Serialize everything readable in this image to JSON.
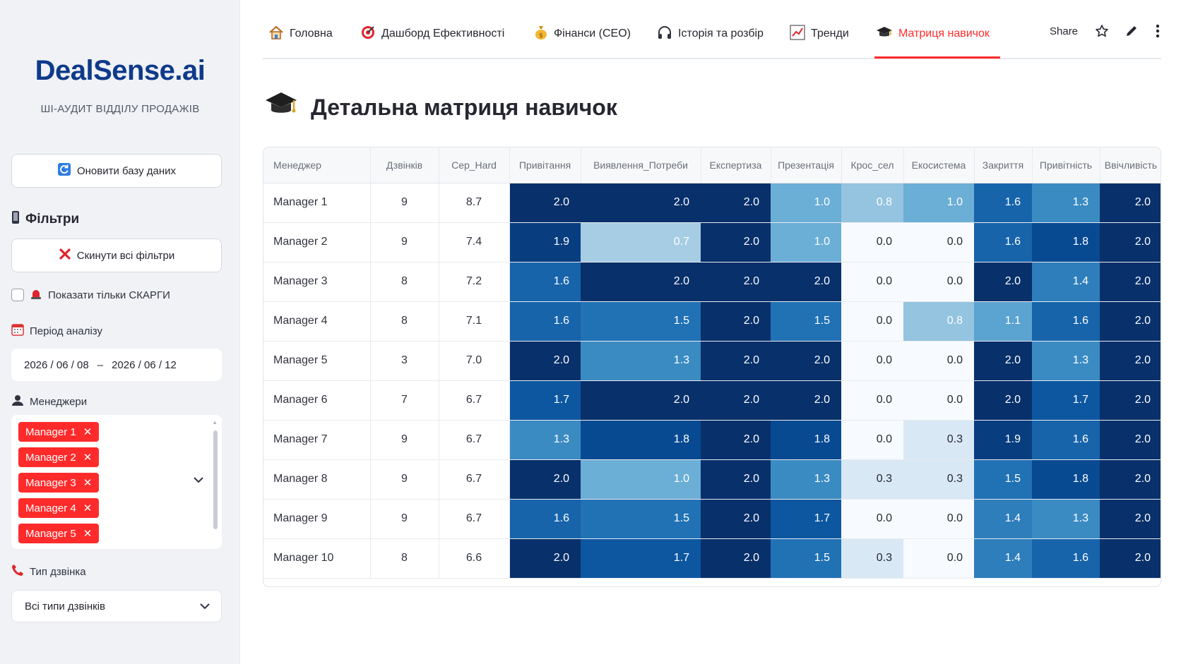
{
  "sidebar": {
    "brand": "DealSense.ai",
    "subtitle": "ШІ-АУДИТ ВІДДІЛУ ПРОДАЖІВ",
    "refresh_label": "Оновити базу даних",
    "filters_heading": "Фільтри",
    "reset_label": "Скинути всі фільтри",
    "complaints_label": "Показати тільки СКАРГИ",
    "period_label": "Період аналізу",
    "date_from": "2026 / 06 / 08",
    "date_sep": "–",
    "date_to": "2026 / 06 / 12",
    "managers_label": "Менеджери",
    "managers_selected": [
      "Manager 1",
      "Manager 2",
      "Manager 3",
      "Manager 4",
      "Manager 5"
    ],
    "call_type_label": "Тип дзвінка",
    "call_type_value": "Всі типи дзвінків"
  },
  "nav": {
    "tabs": [
      {
        "label": "Головна",
        "icon": "home-icon"
      },
      {
        "label": "Дашборд Ефективності",
        "icon": "target-icon"
      },
      {
        "label": "Фінанси (CEO)",
        "icon": "money-bag-icon"
      },
      {
        "label": "Історія та розбір",
        "icon": "headphones-icon"
      },
      {
        "label": "Тренди",
        "icon": "chart-icon"
      },
      {
        "label": "Матриця навичок",
        "icon": "graduation-cap-icon"
      }
    ],
    "active_tab": 5,
    "share_label": "Share"
  },
  "main": {
    "title": "Детальна матриця навичок"
  },
  "table": {
    "columns": [
      "Менеджер",
      "Дзвінків",
      "Сер_Hard",
      "Привітання",
      "Виявлення_Потреби",
      "Експертиза",
      "Презентація",
      "Крос_сел",
      "Екосистема",
      "Закриття",
      "Привітність",
      "Ввічливість"
    ],
    "rows": [
      [
        "Manager 1",
        "9",
        "8.7",
        "2.0",
        "2.0",
        "2.0",
        "1.0",
        "0.8",
        "1.0",
        "1.6",
        "1.3",
        "2.0"
      ],
      [
        "Manager 2",
        "9",
        "7.4",
        "1.9",
        "0.7",
        "2.0",
        "1.0",
        "0.0",
        "0.0",
        "1.6",
        "1.8",
        "2.0"
      ],
      [
        "Manager 3",
        "8",
        "7.2",
        "1.6",
        "2.0",
        "2.0",
        "2.0",
        "0.0",
        "0.0",
        "2.0",
        "1.4",
        "2.0"
      ],
      [
        "Manager 4",
        "8",
        "7.1",
        "1.6",
        "1.5",
        "2.0",
        "1.5",
        "0.0",
        "0.8",
        "1.1",
        "1.6",
        "2.0"
      ],
      [
        "Manager 5",
        "3",
        "7.0",
        "2.0",
        "1.3",
        "2.0",
        "2.0",
        "0.0",
        "0.0",
        "2.0",
        "1.3",
        "2.0"
      ],
      [
        "Manager 6",
        "7",
        "6.7",
        "1.7",
        "2.0",
        "2.0",
        "2.0",
        "0.0",
        "0.0",
        "2.0",
        "1.7",
        "2.0"
      ],
      [
        "Manager 7",
        "9",
        "6.7",
        "1.3",
        "1.8",
        "2.0",
        "1.8",
        "0.0",
        "0.3",
        "1.9",
        "1.6",
        "2.0"
      ],
      [
        "Manager 8",
        "9",
        "6.7",
        "2.0",
        "1.0",
        "2.0",
        "1.3",
        "0.3",
        "0.3",
        "1.5",
        "1.8",
        "2.0"
      ],
      [
        "Manager 9",
        "9",
        "6.7",
        "1.6",
        "1.5",
        "2.0",
        "1.7",
        "0.0",
        "0.0",
        "1.4",
        "1.3",
        "2.0"
      ],
      [
        "Manager 10",
        "8",
        "6.6",
        "2.0",
        "1.7",
        "2.0",
        "1.5",
        "0.3",
        "0.0",
        "1.4",
        "1.6",
        "2.0"
      ]
    ],
    "heat_scale": {
      "min": 0,
      "max": 2,
      "low_color": "#f7fbff",
      "high_color": "#08306b"
    }
  }
}
